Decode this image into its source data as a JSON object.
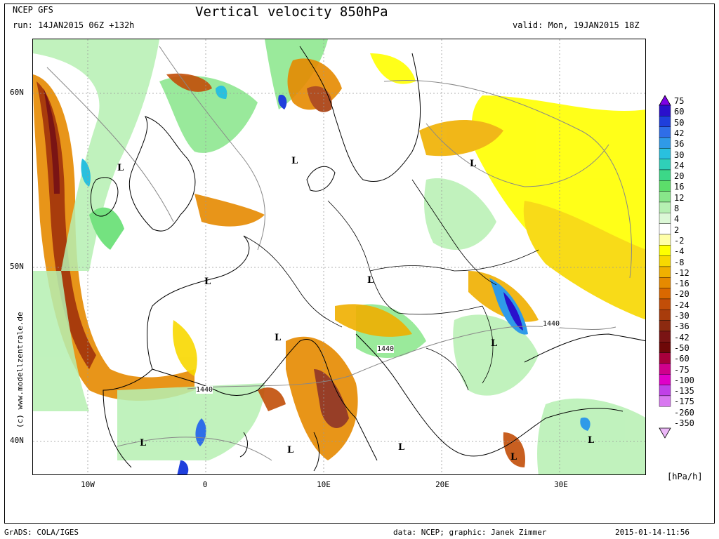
{
  "header": {
    "model": "NCEP GFS",
    "run": "run: 14JAN2015 06Z +132h",
    "title": "Vertical velocity 850hPa",
    "valid": "valid: Mon, 19JAN2015 18Z"
  },
  "axes": {
    "lat_labels": [
      "60N",
      "50N",
      "40N"
    ],
    "lon_labels": [
      "10W",
      "0",
      "10E",
      "20E",
      "30E"
    ]
  },
  "watermark": "(c) www.modellzentrale.de",
  "map_labels": {
    "lows": [
      "L",
      "L",
      "L",
      "L",
      "L",
      "L",
      "L",
      "L",
      "L",
      "L",
      "L",
      "L"
    ],
    "contours": [
      "1440",
      "1440",
      "1440"
    ]
  },
  "legend": {
    "levels": [
      "75",
      "60",
      "50",
      "42",
      "36",
      "30",
      "24",
      "20",
      "16",
      "12",
      "8",
      "4",
      "2",
      "-2",
      "-4",
      "-8",
      "-12",
      "-16",
      "-20",
      "-24",
      "-30",
      "-36",
      "-42",
      "-50",
      "-60",
      "-75",
      "-100",
      "-135",
      "-175",
      "-260",
      "-350"
    ],
    "colors": [
      "#7e00e6",
      "#2a10cc",
      "#1f3fdc",
      "#2f6ee8",
      "#2f9ae8",
      "#29c0de",
      "#2fd0b8",
      "#3cd888",
      "#5cde6a",
      "#88e68a",
      "#b6f0b2",
      "#dcf8d6",
      "#ffffff",
      "#ffffa8",
      "#ffff00",
      "#f8d800",
      "#f0b000",
      "#e68a00",
      "#d96800",
      "#c24e08",
      "#a83c0c",
      "#8c2a10",
      "#7a1414",
      "#6e0808",
      "#a8003c",
      "#d0008c",
      "#e000c8",
      "#c040e8",
      "#d878f0",
      "#ecb8f8"
    ],
    "unit": "[hPa/h]"
  },
  "footer": {
    "left": "GrADS: COLA/IGES",
    "center": "data: NCEP; graphic: Janek Zimmer",
    "right": "2015-01-14-11:56"
  }
}
